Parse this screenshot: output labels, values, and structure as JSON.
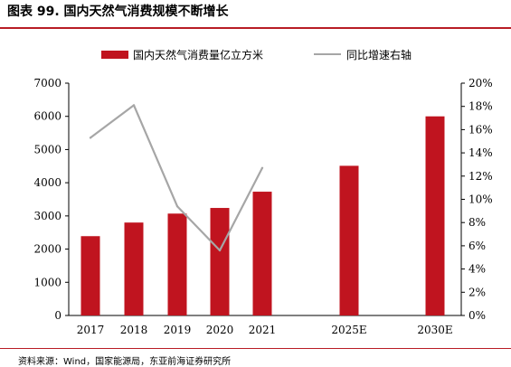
{
  "title": "图表 99. 国内天然气消费规模不断增长",
  "source": "资料来源：Wind，国家能源局，东亚前海证券研究所",
  "colors": {
    "bar": "#c0141f",
    "line": "#a6a6a6",
    "title_rule": "#b81c25"
  },
  "chart_data": {
    "type": "bar",
    "categories": [
      "2017",
      "2018",
      "2019",
      "2020",
      "2021",
      "2025E",
      "2030E"
    ],
    "series": [
      {
        "name": "国内天然气消费量亿立方米",
        "type": "bar",
        "axis": "left",
        "values": [
          2390,
          2800,
          3070,
          3240,
          3730,
          4510,
          6000
        ]
      },
      {
        "name": "同比增速右轴",
        "type": "line",
        "axis": "right",
        "values": [
          15.3,
          18.1,
          9.4,
          5.6,
          12.7,
          null,
          null
        ]
      }
    ],
    "y_left": {
      "min": 0,
      "max": 7000,
      "ticks": [
        "0",
        "1000",
        "2000",
        "3000",
        "4000",
        "5000",
        "6000",
        "7000"
      ]
    },
    "y_right": {
      "min": 0,
      "max": 20,
      "ticks": [
        "0%",
        "2%",
        "4%",
        "6%",
        "8%",
        "10%",
        "12%",
        "14%",
        "16%",
        "18%",
        "20%"
      ]
    },
    "legend_position": "top",
    "grid": false
  }
}
